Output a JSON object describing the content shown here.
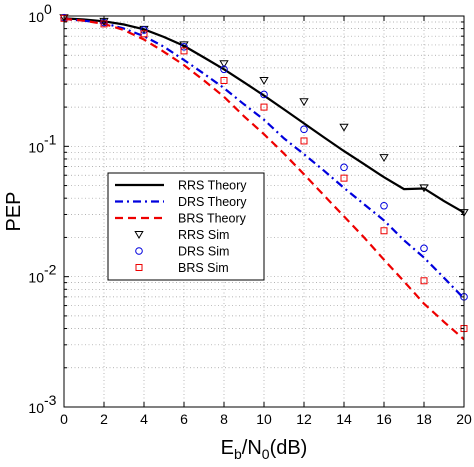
{
  "chart_data": {
    "type": "line",
    "xlabel": {
      "main": "E",
      "sub1": "b",
      "mid": "/N",
      "sub2": "0",
      "unit": "(dB)"
    },
    "ylabel": "PEP",
    "xlim": [
      0,
      20
    ],
    "ylim": [
      0.001,
      1
    ],
    "yscale": "log",
    "grid": true,
    "legend_position": "lower-left",
    "x_ticks": [
      0,
      2,
      4,
      6,
      8,
      10,
      12,
      14,
      16,
      18,
      20
    ],
    "x_tick_labels": [
      "0",
      "2",
      "4",
      "6",
      "8",
      "10",
      "12",
      "14",
      "16",
      "18",
      "20"
    ],
    "y_ticks": [
      0.001,
      0.01,
      0.1,
      1
    ],
    "y_tick_labels": [
      {
        "base": "10",
        "exp": "-3"
      },
      {
        "base": "10",
        "exp": "-2"
      },
      {
        "base": "10",
        "exp": "-1"
      },
      {
        "base": "10",
        "exp": "0"
      }
    ],
    "x": [
      0,
      1,
      2,
      3,
      4,
      5,
      6,
      7,
      8,
      9,
      10,
      11,
      12,
      13,
      14,
      15,
      16,
      17,
      18,
      19,
      20
    ],
    "series": [
      {
        "name": "RRS Theory",
        "kind": "line",
        "color": "#000000",
        "dash": "solid",
        "values": [
          0.96,
          0.94,
          0.91,
          0.86,
          0.79,
          0.69,
          0.59,
          0.48,
          0.39,
          0.31,
          0.245,
          0.192,
          0.15,
          0.117,
          0.092,
          0.073,
          0.058,
          0.047,
          0.0475,
          0.038,
          0.031
        ]
      },
      {
        "name": "DRS Theory",
        "kind": "line",
        "color": "#0000dd",
        "dash": "dashdot",
        "values": [
          0.95,
          0.92,
          0.88,
          0.8,
          0.7,
          0.58,
          0.46,
          0.36,
          0.28,
          0.21,
          0.16,
          0.115,
          0.087,
          0.065,
          0.048,
          0.036,
          0.027,
          0.019,
          0.014,
          0.0098,
          0.0068
        ]
      },
      {
        "name": "BRS Theory",
        "kind": "line",
        "color": "#ee0000",
        "dash": "dashed",
        "values": [
          0.95,
          0.92,
          0.87,
          0.78,
          0.66,
          0.53,
          0.42,
          0.32,
          0.24,
          0.17,
          0.124,
          0.088,
          0.061,
          0.042,
          0.029,
          0.02,
          0.0135,
          0.0092,
          0.0062,
          0.0045,
          0.0033
        ]
      },
      {
        "name": "RRS Sim",
        "kind": "marker",
        "marker": "triangle-down",
        "color": "#000000",
        "x": [
          0,
          2,
          4,
          6,
          8,
          10,
          12,
          14,
          16,
          18,
          20
        ],
        "values": [
          0.97,
          0.91,
          0.79,
          0.6,
          0.43,
          0.32,
          0.22,
          0.14,
          0.082,
          0.048,
          0.031
        ]
      },
      {
        "name": "DRS Sim",
        "kind": "marker",
        "marker": "circle",
        "color": "#0000dd",
        "x": [
          0,
          2,
          4,
          6,
          8,
          10,
          12,
          14,
          16,
          18,
          20
        ],
        "values": [
          0.97,
          0.89,
          0.78,
          0.58,
          0.39,
          0.25,
          0.135,
          0.069,
          0.035,
          0.0165,
          0.007
        ]
      },
      {
        "name": "BRS Sim",
        "kind": "marker",
        "marker": "square",
        "color": "#ee0000",
        "x": [
          0,
          2,
          4,
          6,
          8,
          10,
          12,
          14,
          16,
          18,
          20
        ],
        "values": [
          0.96,
          0.87,
          0.73,
          0.54,
          0.32,
          0.2,
          0.11,
          0.057,
          0.0225,
          0.0093,
          0.004
        ]
      }
    ]
  }
}
